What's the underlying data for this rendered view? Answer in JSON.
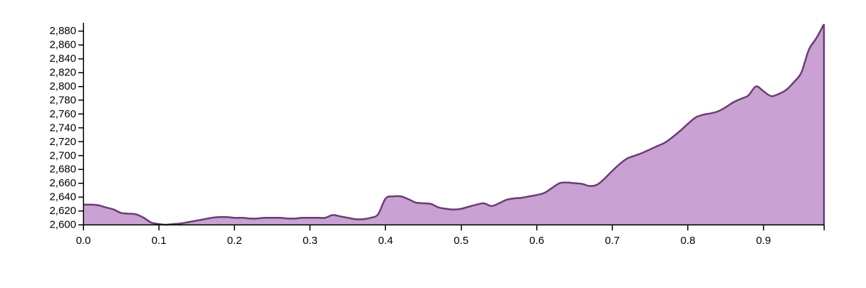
{
  "chart_data": {
    "type": "area",
    "x": [
      0.0,
      0.01,
      0.02,
      0.03,
      0.04,
      0.05,
      0.06,
      0.07,
      0.08,
      0.09,
      0.1,
      0.11,
      0.12,
      0.13,
      0.14,
      0.15,
      0.16,
      0.17,
      0.18,
      0.19,
      0.2,
      0.21,
      0.22,
      0.23,
      0.24,
      0.25,
      0.26,
      0.27,
      0.28,
      0.29,
      0.3,
      0.31,
      0.32,
      0.33,
      0.34,
      0.35,
      0.36,
      0.37,
      0.38,
      0.39,
      0.4,
      0.41,
      0.42,
      0.43,
      0.44,
      0.45,
      0.46,
      0.47,
      0.48,
      0.49,
      0.5,
      0.51,
      0.52,
      0.53,
      0.54,
      0.55,
      0.56,
      0.57,
      0.58,
      0.59,
      0.6,
      0.61,
      0.62,
      0.63,
      0.64,
      0.65,
      0.66,
      0.67,
      0.68,
      0.69,
      0.7,
      0.71,
      0.72,
      0.73,
      0.74,
      0.75,
      0.76,
      0.77,
      0.78,
      0.79,
      0.8,
      0.81,
      0.82,
      0.83,
      0.84,
      0.85,
      0.86,
      0.87,
      0.88,
      0.89,
      0.9,
      0.91,
      0.92,
      0.93,
      0.94,
      0.95,
      0.96,
      0.97,
      0.98
    ],
    "values": [
      2629,
      2629,
      2628,
      2625,
      2622,
      2617,
      2616,
      2615,
      2610,
      2603,
      2601,
      2600,
      2601,
      2602,
      2604,
      2606,
      2608,
      2610,
      2611,
      2611,
      2610,
      2610,
      2609,
      2609,
      2610,
      2610,
      2610,
      2609,
      2609,
      2610,
      2610,
      2610,
      2610,
      2614,
      2612,
      2610,
      2608,
      2608,
      2610,
      2615,
      2638,
      2641,
      2641,
      2637,
      2632,
      2631,
      2630,
      2625,
      2623,
      2622,
      2623,
      2626,
      2629,
      2631,
      2627,
      2631,
      2636,
      2638,
      2639,
      2641,
      2643,
      2646,
      2653,
      2660,
      2661,
      2660,
      2659,
      2656,
      2658,
      2667,
      2678,
      2688,
      2696,
      2700,
      2704,
      2709,
      2714,
      2719,
      2727,
      2736,
      2746,
      2755,
      2759,
      2761,
      2764,
      2770,
      2777,
      2782,
      2787,
      2800,
      2793,
      2786,
      2789,
      2795,
      2806,
      2820,
      2853,
      2870,
      2890
    ],
    "xlim": [
      0,
      0.98
    ],
    "ylim": [
      2600,
      2890
    ],
    "xticks": [
      "0.0",
      "0.1",
      "0.2",
      "0.3",
      "0.4",
      "0.5",
      "0.6",
      "0.7",
      "0.8",
      "0.9"
    ],
    "xtick_values": [
      0,
      0.1,
      0.2,
      0.3,
      0.4,
      0.5,
      0.6,
      0.7,
      0.8,
      0.9
    ],
    "yticks": [
      "2,600",
      "2,620",
      "2,640",
      "2,660",
      "2,680",
      "2,700",
      "2,720",
      "2,740",
      "2,760",
      "2,780",
      "2,800",
      "2,820",
      "2,840",
      "2,860",
      "2,880"
    ],
    "ytick_values": [
      2600,
      2620,
      2640,
      2660,
      2680,
      2700,
      2720,
      2740,
      2760,
      2780,
      2800,
      2820,
      2840,
      2860,
      2880
    ],
    "grid": false,
    "colors": {
      "fill": "#c9a1d3",
      "stroke": "#6a3d74"
    }
  }
}
